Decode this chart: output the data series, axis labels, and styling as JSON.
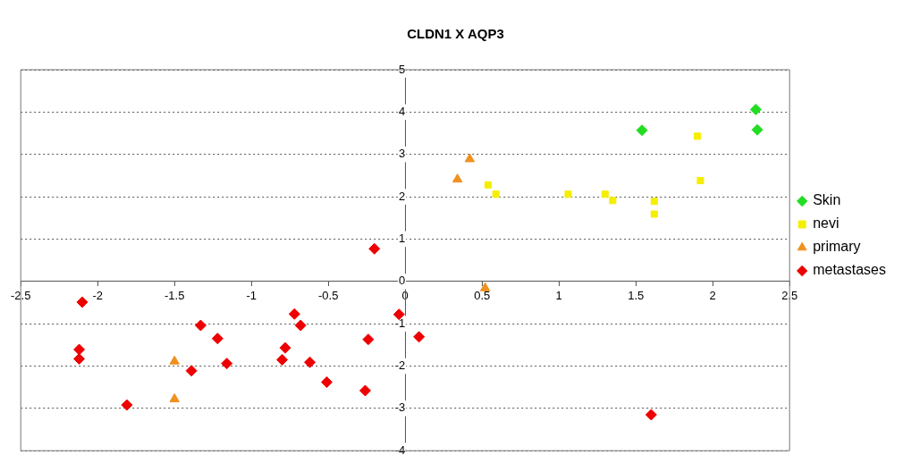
{
  "chart_data": {
    "type": "scatter",
    "title": "CLDN1 X AQP3",
    "xlim": [
      -2.5,
      2.5
    ],
    "xticks": [
      -2.5,
      -2,
      -1.5,
      -1,
      -0.5,
      0,
      0.5,
      1,
      1.5,
      2,
      2.5
    ],
    "ylim": [
      -4,
      5
    ],
    "yticks": [
      -4,
      -3,
      -2,
      -1,
      0,
      1,
      2,
      3,
      4,
      5
    ],
    "grid": "y",
    "legend": "right",
    "series": [
      {
        "name": "Skin",
        "color": "#22dd22",
        "marker": "diamond",
        "x": [
          1.54,
          2.28,
          2.29
        ],
        "values": [
          3.57,
          4.06,
          3.58
        ]
      },
      {
        "name": "nevi",
        "color": "#f5ee00",
        "marker": "square",
        "x": [
          0.54,
          0.59,
          1.06,
          1.3,
          1.35,
          1.62,
          1.62,
          1.9,
          1.92
        ],
        "values": [
          2.28,
          2.06,
          2.06,
          2.06,
          1.91,
          1.89,
          1.59,
          3.43,
          2.38
        ]
      },
      {
        "name": "primary",
        "color": "#f0901e",
        "marker": "triangle",
        "x": [
          0.34,
          0.42,
          0.52,
          -1.5,
          -1.5
        ],
        "values": [
          2.41,
          2.89,
          -0.16,
          -1.89,
          -2.78
        ]
      },
      {
        "name": "metastases",
        "color": "#ee0000",
        "marker": "diamond",
        "x": [
          -2.1,
          -2.12,
          -2.12,
          -1.81,
          -1.33,
          -1.22,
          -1.39,
          -1.16,
          -0.72,
          -0.68,
          -0.78,
          -0.8,
          -0.62,
          -0.51,
          -0.24,
          -0.26,
          -0.04,
          0.09,
          -0.2,
          1.6
        ],
        "values": [
          -0.49,
          -1.61,
          -1.83,
          -2.92,
          -1.04,
          -1.35,
          -2.11,
          -1.94,
          -0.77,
          -1.04,
          -1.57,
          -1.85,
          -1.91,
          -2.38,
          -1.37,
          -2.58,
          -0.78,
          -1.31,
          0.77,
          -3.15
        ]
      }
    ]
  }
}
